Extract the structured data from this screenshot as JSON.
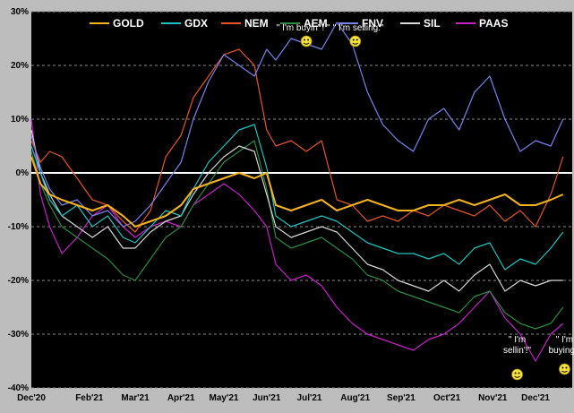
{
  "chart_data": {
    "type": "line",
    "title": "",
    "xlabel": "",
    "ylabel": "",
    "ylim": [
      -40,
      30
    ],
    "y_ticks": [
      30,
      20,
      10,
      0,
      -10,
      -20,
      -30,
      -40
    ],
    "y_tick_labels": [
      "30%",
      "20%",
      "10%",
      "0%",
      "-10%",
      "-20%",
      "-30%",
      "-40%"
    ],
    "x_tick_labels": [
      "Dec'20",
      "Feb'21",
      "Mar'21",
      "Apr'21",
      "May'21",
      "Jun'21",
      "Jul'21",
      "Aug'21",
      "Sep'21",
      "Oct'21",
      "Nov'21",
      "Dec'21"
    ],
    "x_tick_index": [
      0,
      1.9,
      3.4,
      4.9,
      6.3,
      7.7,
      9.1,
      10.6,
      12.1,
      13.6,
      15.1,
      16.5
    ],
    "x_range": [
      0,
      17.7
    ],
    "grid": true,
    "legend_position": "top",
    "background": "#000000",
    "zero_line_color": "#ffffff",
    "series": [
      {
        "name": "GOLD",
        "color": "#f5b31e",
        "x": [
          0,
          0.3,
          0.6,
          1.0,
          1.5,
          2.0,
          2.5,
          3.0,
          3.4,
          3.9,
          4.4,
          4.9,
          5.3,
          5.8,
          6.3,
          6.8,
          7.3,
          7.7,
          8.0,
          8.5,
          9.0,
          9.5,
          10.0,
          10.5,
          11.0,
          11.5,
          12.0,
          12.5,
          13.0,
          13.5,
          14.0,
          14.5,
          15.0,
          15.5,
          16.0,
          16.5,
          17.0,
          17.4
        ],
        "y": [
          3,
          -2,
          -4,
          -5,
          -6,
          -7,
          -6,
          -8,
          -10,
          -9,
          -8,
          -6,
          -3,
          -2,
          -1,
          0,
          -1,
          0,
          -6,
          -7,
          -6,
          -5,
          -7,
          -6,
          -5,
          -6,
          -7,
          -7,
          -6,
          -6,
          -5,
          -6,
          -5,
          -4,
          -6,
          -6,
          -5,
          -4
        ]
      },
      {
        "name": "GDX",
        "color": "#1fc3bd",
        "x": [
          0,
          0.3,
          0.6,
          1.0,
          1.5,
          2.0,
          2.5,
          3.0,
          3.4,
          3.9,
          4.4,
          4.9,
          5.3,
          5.8,
          6.3,
          6.8,
          7.3,
          7.7,
          8.0,
          8.5,
          9.0,
          9.5,
          10.0,
          10.5,
          11.0,
          11.5,
          12.0,
          12.5,
          13.0,
          13.5,
          14.0,
          14.5,
          15.0,
          15.5,
          16.0,
          16.5,
          17.0,
          17.4
        ],
        "y": [
          5,
          0,
          -5,
          -8,
          -6,
          -10,
          -8,
          -12,
          -13,
          -10,
          -7,
          -8,
          -3,
          2,
          5,
          8,
          9,
          1,
          -8,
          -10,
          -9,
          -8,
          -9,
          -11,
          -13,
          -14,
          -15,
          -15,
          -16,
          -15,
          -17,
          -14,
          -13,
          -18,
          -16,
          -17,
          -14,
          -11
        ]
      },
      {
        "name": "NEM",
        "color": "#e4562a",
        "x": [
          0,
          0.3,
          0.6,
          1.0,
          1.5,
          2.0,
          2.5,
          3.0,
          3.4,
          3.9,
          4.4,
          4.9,
          5.3,
          5.8,
          6.3,
          6.8,
          7.3,
          7.7,
          8.0,
          8.5,
          9.0,
          9.5,
          10.0,
          10.5,
          11.0,
          11.5,
          12.0,
          12.5,
          13.0,
          13.5,
          14.0,
          14.5,
          15.0,
          15.5,
          16.0,
          16.5,
          17.0,
          17.4
        ],
        "y": [
          6,
          2,
          4,
          3,
          -1,
          -5,
          -6,
          -9,
          -11,
          -7,
          3,
          7,
          14,
          18,
          22,
          23,
          20,
          8,
          5,
          6,
          4,
          6,
          -5,
          -6,
          -9,
          -8,
          -9,
          -7,
          -8,
          -6,
          -7,
          -8,
          -6,
          -9,
          -7,
          -10,
          -4,
          3
        ]
      },
      {
        "name": "AEM",
        "color": "#2e8a42",
        "x": [
          0,
          0.3,
          0.6,
          1.0,
          1.5,
          2.0,
          2.5,
          3.0,
          3.4,
          3.9,
          4.4,
          4.9,
          5.3,
          5.8,
          6.3,
          6.8,
          7.3,
          7.7,
          8.0,
          8.5,
          9.0,
          9.5,
          10.0,
          10.5,
          11.0,
          11.5,
          12.0,
          12.5,
          13.0,
          13.5,
          14.0,
          14.5,
          15.0,
          15.5,
          16.0,
          16.5,
          17.0,
          17.4
        ],
        "y": [
          4,
          -2,
          -6,
          -10,
          -12,
          -14,
          -16,
          -19,
          -20,
          -16,
          -12,
          -10,
          -6,
          -2,
          2,
          4,
          6,
          -3,
          -12,
          -14,
          -13,
          -12,
          -14,
          -16,
          -19,
          -20,
          -22,
          -23,
          -24,
          -25,
          -26,
          -23,
          -22,
          -26,
          -28,
          -29,
          -28,
          -25
        ]
      },
      {
        "name": "FNV",
        "color": "#7b83ea",
        "x": [
          0,
          0.3,
          0.6,
          1.0,
          1.5,
          2.0,
          2.5,
          3.0,
          3.4,
          3.9,
          4.4,
          4.9,
          5.3,
          5.8,
          6.3,
          6.8,
          7.3,
          7.7,
          8.0,
          8.5,
          9.0,
          9.5,
          10.0,
          10.5,
          11.0,
          11.5,
          12.0,
          12.5,
          13.0,
          13.5,
          14.0,
          14.5,
          15.0,
          15.5,
          16.0,
          16.5,
          17.0,
          17.4
        ],
        "y": [
          7,
          1,
          -3,
          -6,
          -5,
          -8,
          -7,
          -10,
          -9,
          -6,
          -2,
          2,
          10,
          17,
          22,
          20,
          18,
          23,
          21,
          25,
          24,
          23,
          28,
          24,
          15,
          9,
          6,
          4,
          10,
          12,
          8,
          15,
          18,
          10,
          4,
          6,
          5,
          10
        ]
      },
      {
        "name": "SIL",
        "color": "#d8d8d8",
        "x": [
          0,
          0.3,
          0.6,
          1.0,
          1.5,
          2.0,
          2.5,
          3.0,
          3.4,
          3.9,
          4.4,
          4.9,
          5.3,
          5.8,
          6.3,
          6.8,
          7.3,
          7.7,
          8.0,
          8.5,
          9.0,
          9.5,
          10.0,
          10.5,
          11.0,
          11.5,
          12.0,
          12.5,
          13.0,
          13.5,
          14.0,
          14.5,
          15.0,
          15.5,
          16.0,
          16.5,
          17.0,
          17.4
        ],
        "y": [
          8,
          0,
          -4,
          -8,
          -10,
          -12,
          -10,
          -14,
          -14,
          -11,
          -9,
          -8,
          -4,
          0,
          3,
          5,
          4,
          -4,
          -10,
          -12,
          -11,
          -10,
          -11,
          -14,
          -17,
          -18,
          -20,
          -21,
          -22,
          -20,
          -22,
          -19,
          -17,
          -22,
          -20,
          -21,
          -20,
          -20
        ]
      },
      {
        "name": "PAAS",
        "color": "#c620c6",
        "x": [
          0,
          0.3,
          0.6,
          1.0,
          1.5,
          2.0,
          2.5,
          3.0,
          3.4,
          3.9,
          4.4,
          4.9,
          5.3,
          5.8,
          6.3,
          6.8,
          7.3,
          7.7,
          8.0,
          8.5,
          9.0,
          9.5,
          10.0,
          10.5,
          11.0,
          11.5,
          12.0,
          12.5,
          13.0,
          13.5,
          14.0,
          14.5,
          15.0,
          15.5,
          16.0,
          16.5,
          17.0,
          17.4
        ],
        "y": [
          10,
          -4,
          -10,
          -15,
          -12,
          -8,
          -6,
          -10,
          -12,
          -10,
          -9,
          -10,
          -6,
          -4,
          -2,
          -4,
          -7,
          -10,
          -17,
          -20,
          -19,
          -21,
          -25,
          -28,
          -30,
          -31,
          -32,
          -33,
          -31,
          -30,
          -28,
          -25,
          -22,
          -27,
          -30,
          -35,
          -30,
          -28
        ]
      }
    ],
    "annotations": [
      {
        "text": "\" I'm buyin' ! \"",
        "x": 8.9,
        "y": 26.5
      },
      {
        "text": "\" I'm selling.\"",
        "x": 10.7,
        "y": 26.5
      },
      {
        "text": "\" I'm",
        "x": 15.9,
        "y": -31.5
      },
      {
        "text": "sellin'!\"",
        "x": 15.9,
        "y": -33.5
      },
      {
        "text": "\" I'm",
        "x": 17.45,
        "y": -31.5
      },
      {
        "text": "buying.\"",
        "x": 17.45,
        "y": -33.5
      }
    ],
    "emoji_markers": [
      {
        "label": "buy",
        "x": 9.0,
        "y": 24.5
      },
      {
        "label": "sell",
        "x": 10.6,
        "y": 24.5
      },
      {
        "label": "sell",
        "x": 15.9,
        "y": -37.5
      },
      {
        "label": "buy",
        "x": 17.45,
        "y": -36.5
      }
    ]
  }
}
